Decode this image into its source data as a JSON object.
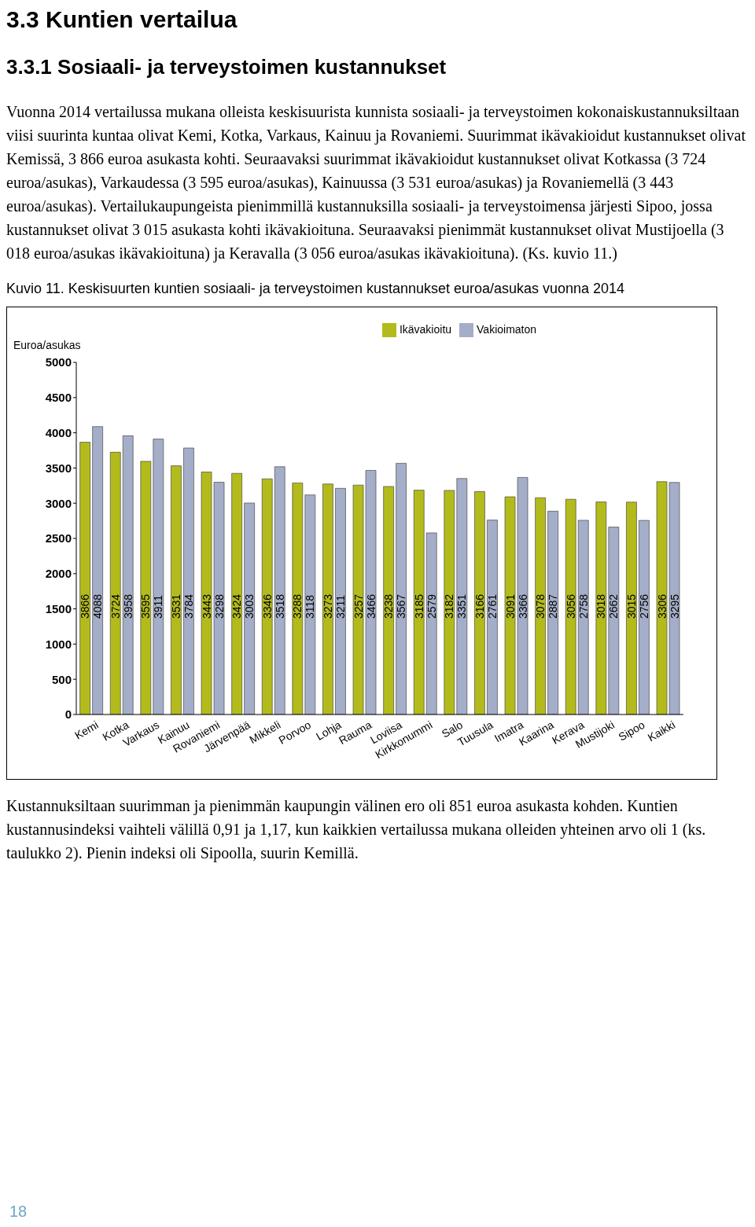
{
  "chart_data": {
    "type": "bar",
    "title": "3.3 Kuntien vertailua",
    "subtitle": "3.3.1 Sosiaali- ja terveystoimen kustannukset",
    "ylabel": "Euroa/asukas",
    "annotations": [
      "Vuonna 2014 vertailussa mukana olleista keskisuurista kunnista sosiaali- ja terveystoimen kokonaiskustannuksiltaan viisi suurinta kuntaa olivat Kemi, Kotka, Varkaus, Kainuu ja Rovaniemi. Suurimmat ikävakioidut kustannukset olivat Kemissä, 3 866 euroa asukasta kohti. Seuraavaksi suurimmat ikävakioidut kustannukset olivat Kotkassa (3 724 euroa/asukas), Varkaudessa (3 595 euroa/asukas), Kainuussa (3 531 euroa/asukas) ja Rovaniemellä (3 443 euroa/asukas). Vertailukaupungeista pienimmillä kustannuksilla sosiaali- ja terveystoimensa järjesti Sipoo, jossa kustannukset olivat 3 015 asukasta kohti ikävakioituna. Seuraavaksi pienimmät kustannukset olivat Mustijoella (3 018 euroa/asukas ikävakioituna) ja Keravalla (3 056 euroa/asukas ikävakioituna). (Ks. kuvio 11.)",
      "Kuvio 11. Keskisuurten kuntien sosiaali- ja terveystoimen kustannukset  euroa/asukas vuonna 2014",
      "Kustannuksiltaan suurimman ja pienimmän kaupungin välinen ero oli 851 euroa asukasta kohden. Kuntien kustannusindeksi vaihteli välillä 0,91 ja 1,17, kun kaikkien vertailussa mukana olleiden yhteinen arvo oli 1 (ks. taulukko 2). Pienin indeksi oli Sipoolla, suurin Kemillä.",
      "18"
    ],
    "categories": [
      "Kemi",
      "Kotka",
      "Varkaus",
      "Kainuu",
      "Rovaniemi",
      "Järvenpää",
      "Mikkeli",
      "Porvoo",
      "Lohja",
      "Rauma",
      "Loviisa",
      "Kirkkonummi",
      "Salo",
      "Tuusula",
      "Imatra",
      "Kaarina",
      "Kerava",
      "Mustijoki",
      "Sipoo",
      "Kaikki"
    ],
    "series": [
      {
        "name": "Ikävakioitu",
        "color": "#b3bb1c",
        "values": [
          3866,
          3724,
          3595,
          3531,
          3443,
          3424,
          3346,
          3288,
          3273,
          3257,
          3238,
          3185,
          3182,
          3166,
          3091,
          3078,
          3056,
          3018,
          3015,
          3306
        ]
      },
      {
        "name": "Vakioimaton",
        "color": "#a5aec8",
        "values": [
          4088,
          3958,
          3911,
          3784,
          3298,
          3003,
          3518,
          3118,
          3211,
          3466,
          3567,
          2579,
          3351,
          2761,
          3366,
          2887,
          2758,
          2662,
          2756,
          3295
        ]
      }
    ],
    "ylim": [
      0,
      5000
    ],
    "yticks": [
      0,
      500,
      1000,
      1500,
      2000,
      2500,
      3000,
      3500,
      4000,
      4500,
      5000
    ],
    "legend": "top",
    "data_labels": true
  }
}
